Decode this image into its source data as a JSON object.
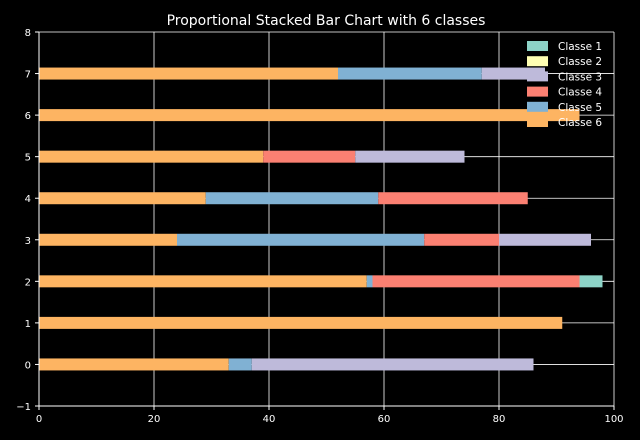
{
  "chart_data": {
    "type": "bar",
    "orientation": "horizontal",
    "stacked": true,
    "title": "Proportional Stacked Bar Chart with 6 classes",
    "xlabel": "",
    "ylabel": "",
    "xlim": [
      0,
      100
    ],
    "ylim": [
      -1,
      8
    ],
    "xticks": [
      0,
      20,
      40,
      60,
      80,
      100
    ],
    "yticks": [
      -1,
      0,
      1,
      2,
      3,
      4,
      5,
      6,
      7,
      8
    ],
    "grid": true,
    "legend_position": "top-right",
    "categories": [
      0,
      1,
      2,
      3,
      4,
      5,
      6,
      7
    ],
    "series": [
      {
        "name": "Classe 6",
        "color": "#fdb462",
        "values": [
          33,
          91,
          57,
          24,
          29,
          39,
          94,
          52
        ]
      },
      {
        "name": "Classe 5",
        "color": "#80b1d3",
        "values": [
          4,
          0,
          1,
          43,
          30,
          0,
          0,
          25
        ]
      },
      {
        "name": "Classe 4",
        "color": "#fb8072",
        "values": [
          0,
          0,
          36,
          13,
          26,
          16,
          0,
          0
        ]
      },
      {
        "name": "Classe 3",
        "color": "#bebada",
        "values": [
          49,
          0,
          0,
          16,
          0,
          19,
          0,
          11
        ]
      },
      {
        "name": "Classe 2",
        "color": "#ffffb3",
        "values": [
          0,
          0,
          0,
          0,
          0,
          0,
          0,
          0
        ]
      },
      {
        "name": "Classe 1",
        "color": "#8dd3c7",
        "values": [
          0,
          0,
          4,
          0,
          0,
          0,
          0,
          0
        ]
      }
    ],
    "legend_order": [
      "Classe 1",
      "Classe 2",
      "Classe 3",
      "Classe 4",
      "Classe 5",
      "Classe 6"
    ]
  },
  "colors": {
    "background": "#000000",
    "foreground": "#ffffff",
    "grid": "#ffffff"
  }
}
